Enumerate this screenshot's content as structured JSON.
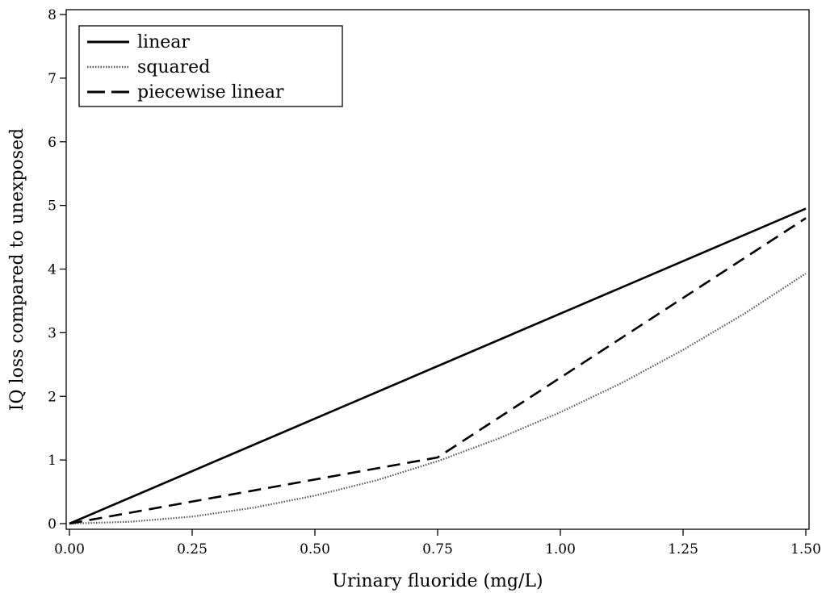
{
  "chart_data": {
    "type": "line",
    "title": "",
    "xlabel": "Urinary fluoride (mg/L)",
    "ylabel": "IQ loss compared to unexposed",
    "xlim": [
      0,
      1.5
    ],
    "ylim": [
      0,
      8
    ],
    "x_ticks": [
      "0.00",
      "0.25",
      "0.50",
      "0.75",
      "1.00",
      "1.25",
      "1.50"
    ],
    "y_ticks": [
      "0",
      "1",
      "2",
      "3",
      "4",
      "5",
      "6",
      "7",
      "8"
    ],
    "grid": false,
    "legend_position": "top-left",
    "series": [
      {
        "name": "linear",
        "style": "solid",
        "color": "#000000",
        "x": [
          0,
          1.5
        ],
        "y": [
          0,
          4.95
        ]
      },
      {
        "name": "squared",
        "style": "dotted",
        "color": "#555555",
        "x": [
          0,
          0.125,
          0.25,
          0.375,
          0.5,
          0.625,
          0.75,
          0.875,
          1.0,
          1.125,
          1.25,
          1.375,
          1.5
        ],
        "y": [
          0,
          0.03,
          0.11,
          0.25,
          0.44,
          0.68,
          0.98,
          1.34,
          1.75,
          2.21,
          2.73,
          3.3,
          3.93
        ]
      },
      {
        "name": "piecewise linear",
        "style": "dashed",
        "color": "#000000",
        "x": [
          0,
          0.75,
          1.5
        ],
        "y": [
          0,
          1.04,
          4.8
        ]
      }
    ]
  }
}
